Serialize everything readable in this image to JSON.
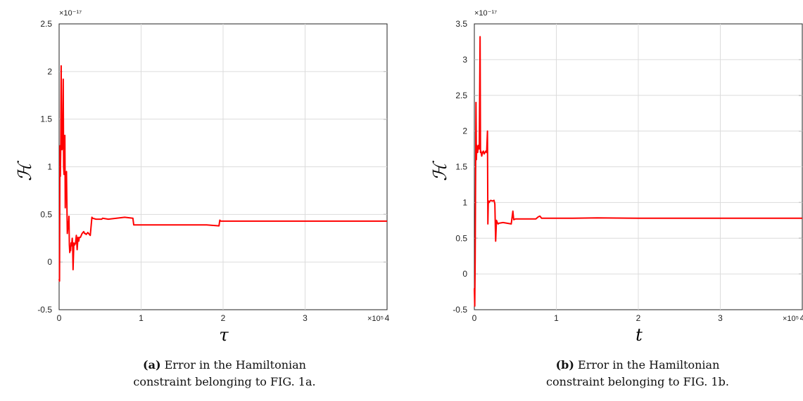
{
  "chart_data": [
    {
      "type": "line",
      "ylabel": "ℋ",
      "xlabel": "τ",
      "y_exponent_label": "×10⁻¹⁷",
      "x_exponent_label": "×10⁵",
      "xlim": [
        0,
        4
      ],
      "ylim": [
        -0.5,
        2.5
      ],
      "xticks": [
        0,
        1,
        2,
        3,
        4
      ],
      "yticks": [
        -0.5,
        0,
        0.5,
        1,
        1.5,
        2,
        2.5
      ],
      "xtick_labels": [
        "0",
        "1",
        "2",
        "3",
        "4"
      ],
      "ytick_labels": [
        "-0.5",
        "0",
        "0.5",
        "1",
        "1.5",
        "2",
        "2.5"
      ],
      "grid": true,
      "color": "#ff0000",
      "series": [
        {
          "x": [
            0,
            0.005,
            0.01,
            0.015,
            0.02,
            0.025,
            0.03,
            0.035,
            0.04,
            0.045,
            0.05,
            0.055,
            0.06,
            0.065,
            0.07,
            0.075,
            0.08,
            0.085,
            0.09,
            0.095,
            0.1,
            0.105,
            0.11,
            0.115,
            0.12,
            0.125,
            0.13,
            0.135,
            0.14,
            0.145,
            0.15,
            0.155,
            0.16,
            0.165,
            0.17,
            0.18,
            0.185,
            0.19,
            0.2,
            0.21,
            0.22,
            0.23,
            0.24,
            0.245,
            0.25,
            0.26,
            0.28,
            0.3,
            0.31,
            0.32,
            0.33,
            0.35,
            0.38,
            0.4,
            0.41,
            0.45,
            0.5,
            0.52,
            0.53,
            0.6,
            0.7,
            0.8,
            0.9,
            0.91,
            0.92,
            1.0,
            1.2,
            1.4,
            1.6,
            1.8,
            1.95,
            1.96,
            1.97,
            2.0,
            2.5,
            3.0,
            3.5,
            4.0
          ],
          "y": [
            -0.18,
            -0.2,
            1.22,
            0.9,
            1.2,
            2.06,
            1.25,
            1.18,
            1.2,
            1.5,
            1.92,
            1.0,
            0.92,
            0.95,
            1.33,
            0.57,
            0.93,
            0.92,
            0.95,
            0.6,
            0.3,
            0.35,
            0.42,
            0.4,
            0.48,
            0.18,
            0.1,
            0.15,
            0.12,
            0.2,
            0.17,
            0.2,
            0.25,
            0.18,
            -0.08,
            0.2,
            0.19,
            0.18,
            0.2,
            0.28,
            0.13,
            0.26,
            0.22,
            0.25,
            0.26,
            0.26,
            0.3,
            0.32,
            0.3,
            0.3,
            0.29,
            0.31,
            0.28,
            0.47,
            0.46,
            0.45,
            0.45,
            0.45,
            0.46,
            0.45,
            0.46,
            0.47,
            0.46,
            0.39,
            0.39,
            0.39,
            0.39,
            0.39,
            0.39,
            0.39,
            0.38,
            0.44,
            0.43,
            0.43,
            0.43,
            0.43,
            0.43,
            0.43
          ]
        }
      ]
    },
    {
      "type": "line",
      "ylabel": "ℋ",
      "xlabel": "t",
      "y_exponent_label": "×10⁻¹⁷",
      "x_exponent_label": "×10⁵",
      "xlim": [
        0,
        4
      ],
      "ylim": [
        -0.5,
        3.5
      ],
      "xticks": [
        0,
        1,
        2,
        3,
        4
      ],
      "yticks": [
        -0.5,
        0,
        0.5,
        1,
        1.5,
        2,
        2.5,
        3,
        3.5
      ],
      "xtick_labels": [
        "0",
        "1",
        "2",
        "3",
        "4"
      ],
      "ytick_labels": [
        "-0.5",
        "0",
        "0.5",
        "1",
        "1.5",
        "2",
        "2.5",
        "3",
        "3.5"
      ],
      "grid": true,
      "color": "#ff0000",
      "series": [
        {
          "x": [
            0,
            0.005,
            0.01,
            0.02,
            0.025,
            0.03,
            0.04,
            0.05,
            0.06,
            0.07,
            0.075,
            0.08,
            0.09,
            0.1,
            0.11,
            0.12,
            0.13,
            0.14,
            0.15,
            0.16,
            0.165,
            0.17,
            0.175,
            0.18,
            0.19,
            0.2,
            0.22,
            0.24,
            0.25,
            0.26,
            0.27,
            0.28,
            0.29,
            0.3,
            0.35,
            0.4,
            0.45,
            0.47,
            0.48,
            0.5,
            0.6,
            0.7,
            0.75,
            0.78,
            0.8,
            0.82,
            0.85,
            1.0,
            1.2,
            1.5,
            2.0,
            2.5,
            3.0,
            3.5,
            4.0
          ],
          "y": [
            -0.2,
            -0.45,
            0.2,
            2.4,
            1.6,
            1.8,
            1.7,
            1.8,
            1.75,
            3.32,
            1.7,
            1.72,
            1.65,
            1.7,
            1.72,
            1.68,
            1.7,
            1.72,
            1.7,
            2.0,
            0.7,
            1.0,
            1.02,
            1.0,
            1.02,
            1.03,
            1.02,
            1.03,
            0.98,
            0.46,
            0.75,
            0.72,
            0.7,
            0.71,
            0.72,
            0.71,
            0.7,
            0.88,
            0.76,
            0.77,
            0.77,
            0.77,
            0.77,
            0.8,
            0.81,
            0.78,
            0.78,
            0.78,
            0.78,
            0.785,
            0.78,
            0.78,
            0.78,
            0.78,
            0.78
          ]
        }
      ]
    }
  ],
  "captions": [
    {
      "bold": "(a)",
      "line1": " Error in the Hamiltonian",
      "line2": "constraint belonging to FIG. 1a."
    },
    {
      "bold": "(b)",
      "line1": " Error in the Hamiltonian",
      "line2": "constraint belonging to FIG. 1b."
    }
  ]
}
